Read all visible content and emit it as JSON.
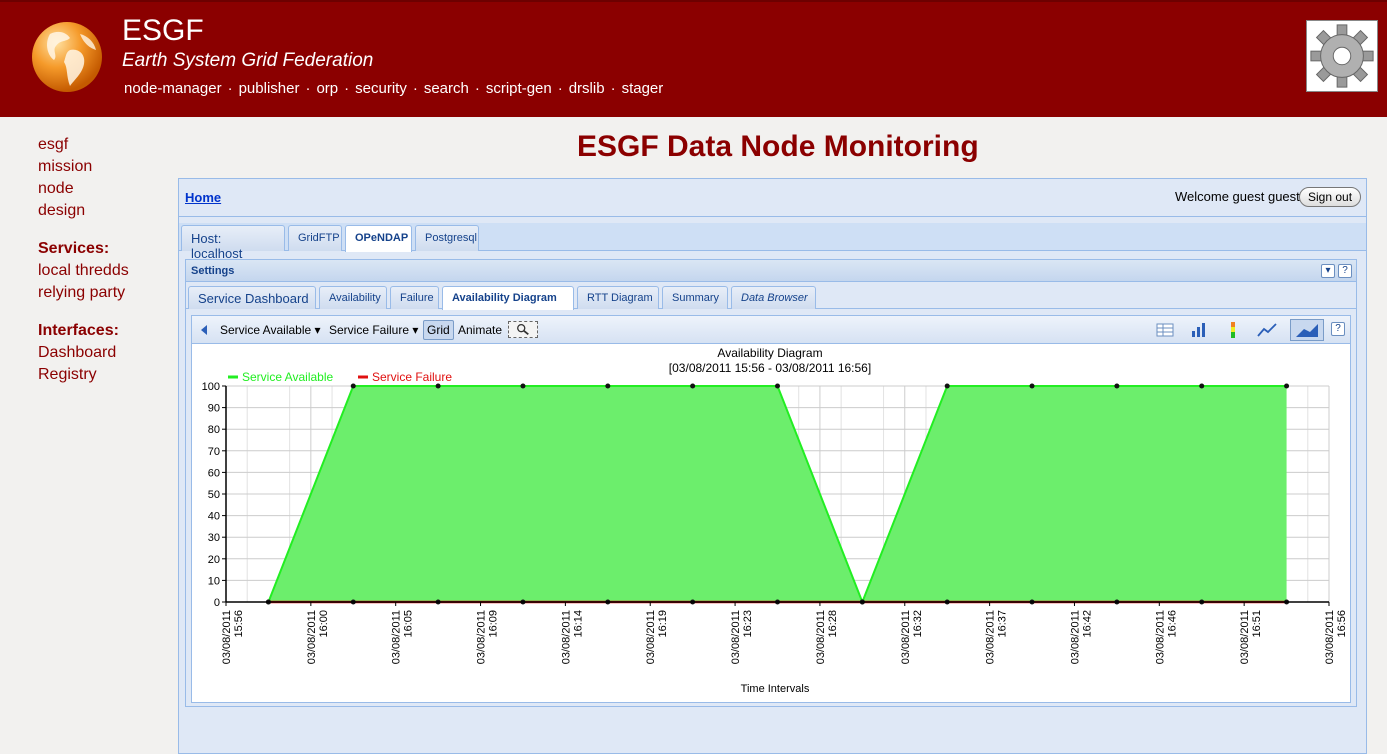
{
  "header": {
    "title": "ESGF",
    "subtitle": "Earth System Grid Federation",
    "nav": [
      "node-manager",
      "publisher",
      "orp",
      "security",
      "search",
      "script-gen",
      "drslib",
      "stager"
    ]
  },
  "leftnav": {
    "about": [
      "esgf",
      "mission",
      "node",
      "design"
    ],
    "services_heading": "Services:",
    "services": [
      "local thredds",
      "relying party"
    ],
    "interfaces_heading": "Interfaces:",
    "interfaces": [
      "Dashboard",
      "Registry"
    ]
  },
  "page_title": "ESGF Data Node Monitoring",
  "homebar": {
    "home": "Home",
    "welcome": "Welcome  guest guest",
    "signout": "Sign out"
  },
  "host_tabs": [
    "Host: localhost",
    "GridFTP",
    "OPeNDAP",
    "Postgresql"
  ],
  "active_host_tab": "OPeNDAP",
  "settings_label": "Settings",
  "sub_tabs": [
    "Service Dashboard",
    "Availability",
    "Failure",
    "Availability Diagram",
    "RTT Diagram",
    "Summary",
    "Data Browser"
  ],
  "active_sub_tab": "Availability Diagram",
  "chart_toolbar": {
    "service_available": "Service Available ▾",
    "service_failure": "Service Failure ▾",
    "grid": "Grid",
    "animate": "Animate",
    "icons": [
      "back-arrow-icon",
      "zoom-icon",
      "table-view-icon",
      "bar-chart-icon",
      "status-bar-icon",
      "line-chart-icon",
      "area-chart-icon",
      "help-icon"
    ]
  },
  "chart_data": {
    "type": "area",
    "title": "Availability Diagram",
    "subtitle": "[03/08/2011 15:56 - 03/08/2011 16:56]",
    "xlabel": "Time Intervals",
    "ylabel": "",
    "ylim": [
      0,
      100
    ],
    "yticks": [
      0,
      10,
      20,
      30,
      40,
      50,
      60,
      70,
      80,
      90,
      100
    ],
    "grid": true,
    "legend_position": "top-left",
    "x_ticks": [
      "03/08/2011\n15:56",
      "03/08/2011\n16:00",
      "03/08/2011\n16:05",
      "03/08/2011\n16:09",
      "03/08/2011\n16:14",
      "03/08/2011\n16:19",
      "03/08/2011\n16:23",
      "03/08/2011\n16:28",
      "03/08/2011\n16:32",
      "03/08/2011\n16:37",
      "03/08/2011\n16:42",
      "03/08/2011\n16:46",
      "03/08/2011\n16:51",
      "03/08/2011\n16:56"
    ],
    "x_index": [
      0.5,
      1.5,
      2.5,
      3.5,
      4.5,
      5.5,
      6.5,
      7.5,
      8.5,
      9.5,
      10.5,
      11.5,
      12.5
    ],
    "series": [
      {
        "name": "Service Available",
        "color": "#22ee22",
        "fill": "#6cee6c",
        "values": [
          0,
          100,
          100,
          100,
          100,
          100,
          100,
          0,
          100,
          100,
          100,
          100,
          100
        ]
      },
      {
        "name": "Service Failure",
        "color": "#e01010",
        "values": [
          0,
          0,
          0,
          0,
          0,
          0,
          0,
          0,
          0,
          0,
          0,
          0,
          0
        ]
      }
    ]
  },
  "colors": {
    "brand": "#8b0000",
    "panel": "#dfe8f6",
    "border": "#99bbe8"
  }
}
